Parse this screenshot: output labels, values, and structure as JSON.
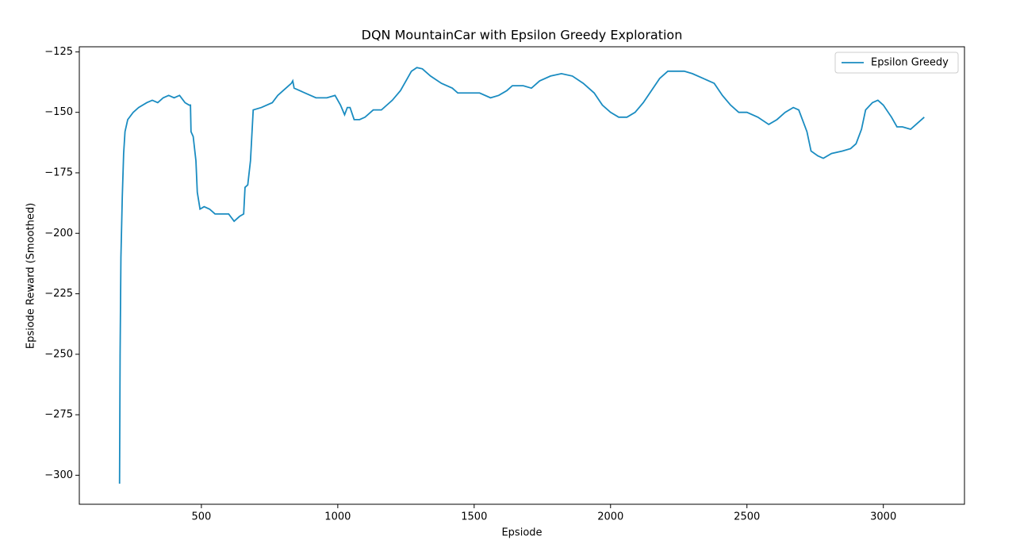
{
  "chart_data": {
    "type": "line",
    "title": "DQN MountainCar with Epsilon Greedy Exploration",
    "xlabel": "Epsiode",
    "ylabel": "Epsiode Reward (Smoothed)",
    "x": [
      200,
      202,
      205,
      210,
      215,
      220,
      230,
      250,
      270,
      300,
      320,
      340,
      360,
      380,
      400,
      420,
      440,
      455,
      460,
      462,
      470,
      480,
      485,
      495,
      510,
      530,
      550,
      580,
      600,
      620,
      640,
      655,
      660,
      670,
      680,
      690,
      720,
      760,
      780,
      800,
      830,
      835,
      840,
      880,
      920,
      960,
      990,
      1010,
      1025,
      1035,
      1045,
      1060,
      1080,
      1100,
      1130,
      1160,
      1200,
      1230,
      1250,
      1270,
      1290,
      1310,
      1340,
      1380,
      1420,
      1440,
      1480,
      1520,
      1560,
      1590,
      1620,
      1640,
      1680,
      1710,
      1740,
      1780,
      1820,
      1860,
      1900,
      1940,
      1970,
      2000,
      2030,
      2060,
      2090,
      2120,
      2150,
      2180,
      2210,
      2240,
      2270,
      2300,
      2340,
      2380,
      2410,
      2440,
      2470,
      2500,
      2540,
      2580,
      2610,
      2640,
      2670,
      2690,
      2710,
      2720,
      2735,
      2760,
      2780,
      2810,
      2850,
      2880,
      2900,
      2920,
      2935,
      2960,
      2980,
      3000,
      3030,
      3050,
      3070,
      3100,
      3120,
      3150
    ],
    "series": [
      {
        "name": "Epsilon Greedy",
        "color": "#1a8cc1",
        "values": [
          -303.5,
          -250,
          -210,
          -185,
          -167,
          -158,
          -153,
          -150,
          -148,
          -146,
          -145,
          -146,
          -144,
          -143,
          -144,
          -143,
          -146,
          -147,
          -147,
          -158,
          -160,
          -170,
          -183,
          -190,
          -189,
          -190,
          -192,
          -192,
          -192,
          -195,
          -193,
          -192,
          -181,
          -180,
          -170,
          -149,
          -148,
          -146,
          -143,
          -141,
          -138,
          -137,
          -140,
          -142,
          -144,
          -144,
          -143,
          -147,
          -151,
          -148,
          -148,
          -153,
          -153,
          -152,
          -149,
          -149,
          -145,
          -141,
          -137,
          -133,
          -131.5,
          -132,
          -135,
          -138,
          -140,
          -142,
          -142,
          -142,
          -144,
          -143,
          -141,
          -139,
          -139,
          -140,
          -137,
          -135,
          -134,
          -135,
          -138,
          -142,
          -147,
          -150,
          -152,
          -152,
          -150,
          -146,
          -141,
          -136,
          -133,
          -133,
          -133,
          -134,
          -136,
          -138,
          -143,
          -147,
          -150,
          -150,
          -152,
          -155,
          -153,
          -150,
          -148,
          -149,
          -155,
          -158,
          -166,
          -168,
          -169,
          -167,
          -166,
          -165,
          -163,
          -157,
          -149,
          -146,
          -145,
          -147,
          -152,
          -156,
          -156,
          -157,
          -155,
          -152
        ]
      }
    ],
    "xlim": [
      52.5,
      3297.5
    ],
    "ylim": [
      -312,
      -122.9
    ],
    "xticks": [
      500,
      1000,
      1500,
      2000,
      2500,
      3000
    ],
    "yticks": [
      {
        "value": -125,
        "label": "−125"
      },
      {
        "value": -150,
        "label": "−150"
      },
      {
        "value": -175,
        "label": "−175"
      },
      {
        "value": -200,
        "label": "−200"
      },
      {
        "value": -225,
        "label": "−225"
      },
      {
        "value": -250,
        "label": "−250"
      },
      {
        "value": -275,
        "label": "−275"
      },
      {
        "value": -300,
        "label": "−300"
      }
    ],
    "legend": "upper right"
  }
}
